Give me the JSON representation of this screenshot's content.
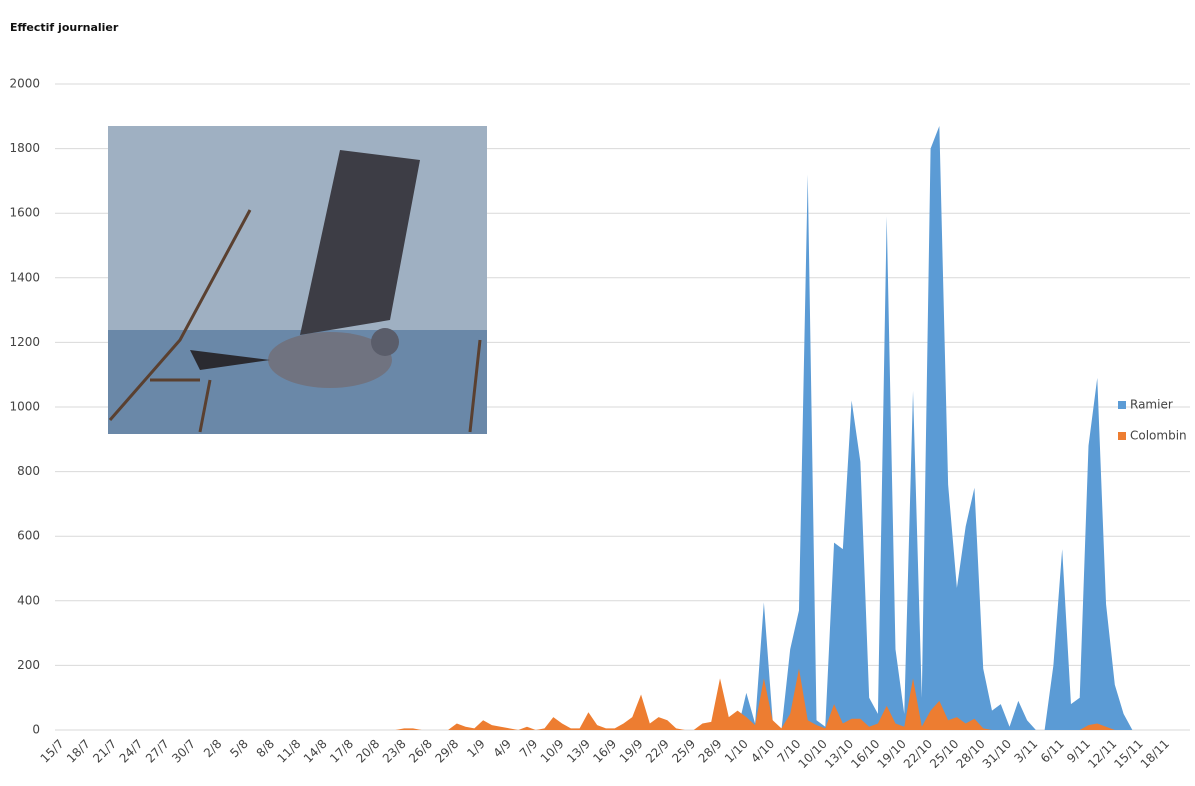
{
  "chart_data": {
    "type": "area",
    "title": "Effectif journalier",
    "categories": [
      "15/7",
      null,
      null,
      "18/7",
      null,
      null,
      "21/7",
      null,
      null,
      "24/7",
      null,
      null,
      "27/7",
      null,
      null,
      "30/7",
      null,
      null,
      "2/8",
      null,
      null,
      "5/8",
      null,
      null,
      "8/8",
      null,
      null,
      "11/8",
      null,
      null,
      "14/8",
      null,
      null,
      "17/8",
      null,
      null,
      "20/8",
      null,
      null,
      "23/8",
      null,
      null,
      "26/8",
      null,
      null,
      "29/8",
      null,
      null,
      "1/9",
      null,
      null,
      "4/9",
      null,
      null,
      "7/9",
      null,
      null,
      "10/9",
      null,
      null,
      "13/9",
      null,
      null,
      "16/9",
      null,
      null,
      "19/9",
      null,
      null,
      "22/9",
      null,
      null,
      "25/9",
      null,
      null,
      "28/9",
      null,
      null,
      "1/10",
      null,
      null,
      "4/10",
      null,
      null,
      "7/10",
      null,
      null,
      "10/10",
      null,
      null,
      "13/10",
      null,
      null,
      "16/10",
      null,
      null,
      "19/10",
      null,
      null,
      "22/10",
      null,
      null,
      "25/10",
      null,
      null,
      "28/10",
      null,
      null,
      "31/10",
      null,
      null,
      "3/11",
      null,
      null,
      "6/11",
      null,
      null,
      "9/11",
      null,
      null,
      "12/11",
      null,
      null,
      "15/11",
      null,
      null,
      "18/11",
      null
    ],
    "series": [
      {
        "name": "Ramier",
        "color": "#5b9bd5",
        "values": [
          0,
          0,
          0,
          0,
          0,
          0,
          0,
          0,
          0,
          0,
          0,
          0,
          0,
          0,
          0,
          0,
          0,
          0,
          0,
          0,
          0,
          0,
          0,
          0,
          0,
          0,
          0,
          0,
          0,
          0,
          0,
          0,
          0,
          0,
          0,
          0,
          0,
          0,
          0,
          0,
          0,
          0,
          0,
          0,
          0,
          0,
          0,
          0,
          0,
          0,
          0,
          0,
          0,
          0,
          0,
          0,
          0,
          0,
          0,
          0,
          0,
          0,
          0,
          0,
          0,
          0,
          0,
          0,
          0,
          0,
          0,
          0,
          0,
          0,
          0,
          0,
          0,
          0,
          115,
          20,
          395,
          30,
          0,
          250,
          370,
          1720,
          30,
          10,
          580,
          560,
          1020,
          830,
          100,
          50,
          1590,
          250,
          50,
          1050,
          100,
          1800,
          1870,
          760,
          440,
          630,
          750,
          190,
          60,
          80,
          10,
          90,
          30,
          0,
          0,
          200,
          560,
          80,
          100,
          880,
          1090,
          390,
          140,
          50,
          0,
          0,
          0,
          0,
          0,
          0
        ]
      },
      {
        "name": "Colombin",
        "color": "#ed7d31",
        "values": [
          0,
          0,
          0,
          0,
          0,
          0,
          0,
          0,
          0,
          0,
          0,
          0,
          0,
          0,
          0,
          0,
          0,
          0,
          0,
          0,
          0,
          0,
          0,
          0,
          0,
          0,
          0,
          0,
          0,
          0,
          0,
          0,
          0,
          0,
          0,
          0,
          0,
          0,
          0,
          5,
          5,
          0,
          0,
          0,
          0,
          20,
          10,
          5,
          30,
          15,
          10,
          5,
          0,
          10,
          0,
          5,
          40,
          20,
          5,
          5,
          55,
          15,
          5,
          5,
          20,
          40,
          110,
          20,
          40,
          30,
          5,
          0,
          0,
          20,
          25,
          160,
          40,
          60,
          40,
          15,
          160,
          30,
          5,
          50,
          190,
          30,
          15,
          5,
          80,
          20,
          35,
          35,
          10,
          20,
          75,
          20,
          10,
          160,
          10,
          60,
          90,
          30,
          40,
          20,
          35,
          5,
          0,
          0,
          0,
          0,
          0,
          0,
          0,
          0,
          0,
          0,
          0,
          15,
          20,
          10,
          0,
          0,
          0,
          0,
          0,
          0,
          0,
          0
        ]
      }
    ],
    "ylim": [
      0,
      2000
    ],
    "yticks": [
      0,
      200,
      400,
      600,
      800,
      1000,
      1200,
      1400,
      1600,
      1800,
      2000
    ],
    "grid": true,
    "legend": "right"
  }
}
